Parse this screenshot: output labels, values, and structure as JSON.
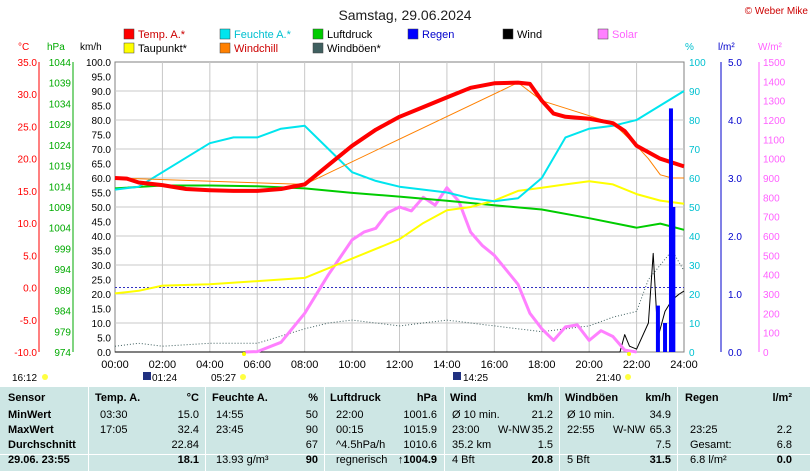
{
  "title": "Samstag, 29.06.2024",
  "copyright": "© Weber Mike",
  "legend": [
    {
      "label": "Temp. A.*",
      "color": "#ff0000"
    },
    {
      "label": "Feuchte A.*",
      "color": "#00e5ee"
    },
    {
      "label": "Luftdruck",
      "color": "#00cc00"
    },
    {
      "label": "Regen",
      "color": "#0000ff"
    },
    {
      "label": "Wind",
      "color": "#000000"
    },
    {
      "label": "Solar",
      "color": "#ff80ff"
    },
    {
      "label": "Taupunkt*",
      "color": "#ffff00"
    },
    {
      "label": "Windchill",
      "color": "#ff8000"
    },
    {
      "label": "Windböen*",
      "color": "#406060"
    }
  ],
  "axes": {
    "units": {
      "temp": "°C",
      "press": "hPa",
      "wind": "km/h",
      "hum": "%",
      "rain": "l/m²",
      "solar": "W/m²"
    },
    "temp_ticks": [
      "35.0",
      "30.0",
      "25.0",
      "20.0",
      "15.0",
      "10.0",
      "5.0",
      "0.0",
      "-5.0",
      "-10.0"
    ],
    "press_ticks": [
      "1044",
      "1039",
      "1034",
      "1029",
      "1024",
      "1019",
      "1014",
      "1009",
      "1004",
      "999",
      "994",
      "989",
      "984",
      "979",
      "974"
    ],
    "wind_ticks": [
      "100.0",
      "95.0",
      "90.0",
      "85.0",
      "80.0",
      "75.0",
      "70.0",
      "65.0",
      "60.0",
      "55.0",
      "50.0",
      "45.0",
      "40.0",
      "35.0",
      "30.0",
      "25.0",
      "20.0",
      "15.0",
      "10.0",
      "5.0",
      "0.0"
    ],
    "hum_ticks": [
      "100",
      "90",
      "80",
      "70",
      "60",
      "50",
      "40",
      "30",
      "20",
      "10",
      "0"
    ],
    "rain_ticks": [
      "5.0",
      "4.0",
      "3.0",
      "2.0",
      "1.0",
      "0.0"
    ],
    "solar_ticks": [
      "1500",
      "1400",
      "1300",
      "1200",
      "1100",
      "1000",
      "900",
      "800",
      "700",
      "600",
      "500",
      "400",
      "300",
      "200",
      "100",
      "0"
    ],
    "x_ticks": [
      "00:00",
      "02:00",
      "04:00",
      "06:00",
      "08:00",
      "10:00",
      "12:00",
      "14:00",
      "16:00",
      "18:00",
      "20:00",
      "22:00",
      "24:00"
    ],
    "sun": {
      "rise": "05:27",
      "set": "21:40",
      "rise_label": "16:12",
      "moon_rise": "01:24",
      "moon_set": "14:25"
    }
  },
  "chart_data": {
    "type": "line",
    "title": "Samstag, 29.06.2024",
    "x_unit": "hours",
    "xlim": [
      0,
      24
    ],
    "series": [
      {
        "name": "Temp. A.*",
        "unit": "°C",
        "ylim": [
          -10,
          35
        ],
        "points": [
          [
            0,
            17.0
          ],
          [
            0.5,
            16.9
          ],
          [
            1,
            16.3
          ],
          [
            2,
            15.9
          ],
          [
            3,
            15.3
          ],
          [
            4,
            15.1
          ],
          [
            5,
            15.0
          ],
          [
            6,
            15.0
          ],
          [
            7,
            15.3
          ],
          [
            8,
            16.0
          ],
          [
            9,
            19.0
          ],
          [
            10,
            22.0
          ],
          [
            11,
            24.5
          ],
          [
            12,
            26.5
          ],
          [
            13,
            28.0
          ],
          [
            14,
            29.5
          ],
          [
            15,
            31.0
          ],
          [
            16,
            31.7
          ],
          [
            17,
            31.8
          ],
          [
            17.5,
            31.6
          ],
          [
            18,
            29.0
          ],
          [
            18.5,
            27.0
          ],
          [
            19,
            26.5
          ],
          [
            20,
            26.2
          ],
          [
            21,
            25.5
          ],
          [
            21.5,
            24.3
          ],
          [
            22,
            22.0
          ],
          [
            23,
            20.0
          ],
          [
            24,
            18.8
          ]
        ]
      },
      {
        "name": "Feuchte A.*",
        "unit": "%",
        "ylim": [
          0,
          100
        ],
        "points": [
          [
            0,
            56
          ],
          [
            1,
            57
          ],
          [
            2,
            62
          ],
          [
            3,
            67
          ],
          [
            4,
            72
          ],
          [
            5,
            74
          ],
          [
            6,
            74
          ],
          [
            7,
            77
          ],
          [
            8,
            78
          ],
          [
            9,
            70
          ],
          [
            10,
            62
          ],
          [
            11,
            59
          ],
          [
            12,
            57
          ],
          [
            13,
            56
          ],
          [
            14,
            55
          ],
          [
            15,
            53
          ],
          [
            16,
            52
          ],
          [
            17,
            53
          ],
          [
            18,
            60
          ],
          [
            19,
            74
          ],
          [
            20,
            77
          ],
          [
            21,
            78
          ],
          [
            22,
            80
          ],
          [
            23,
            85
          ],
          [
            24,
            90
          ]
        ]
      },
      {
        "name": "Luftdruck",
        "unit": "hPa",
        "ylim": [
          974,
          1044
        ],
        "points": [
          [
            0,
            1013.5
          ],
          [
            2,
            1014.2
          ],
          [
            4,
            1014.2
          ],
          [
            6,
            1014.0
          ],
          [
            8,
            1013.5
          ],
          [
            10,
            1012.4
          ],
          [
            12,
            1011.5
          ],
          [
            14,
            1010.5
          ],
          [
            16,
            1009.4
          ],
          [
            18,
            1008.4
          ],
          [
            20,
            1006.3
          ],
          [
            22,
            1004.0
          ],
          [
            23,
            1005.0
          ],
          [
            24,
            1003.5
          ]
        ]
      },
      {
        "name": "Taupunkt*",
        "unit": "°C",
        "ylim": [
          -10,
          35
        ],
        "points": [
          [
            0,
            -0.9
          ],
          [
            1,
            -0.5
          ],
          [
            2,
            0.3
          ],
          [
            4,
            0.5
          ],
          [
            6,
            1.0
          ],
          [
            8,
            1.5
          ],
          [
            10,
            4.5
          ],
          [
            12,
            7.5
          ],
          [
            13,
            10.0
          ],
          [
            14,
            12.0
          ],
          [
            15,
            12.5
          ],
          [
            16,
            13.5
          ],
          [
            17,
            15.0
          ],
          [
            18,
            15.5
          ],
          [
            19,
            16.0
          ],
          [
            20,
            16.5
          ],
          [
            21,
            16.0
          ],
          [
            22,
            14.5
          ],
          [
            23,
            13.5
          ],
          [
            24,
            13.0
          ]
        ]
      },
      {
        "name": "Windchill",
        "unit": "°C",
        "ylim": [
          -10,
          35
        ],
        "points": [
          [
            0,
            17.0
          ],
          [
            8,
            16.0
          ],
          [
            17,
            31.8
          ],
          [
            18,
            29.0
          ],
          [
            21,
            25.5
          ],
          [
            22,
            22.0
          ],
          [
            22.5,
            20.0
          ],
          [
            23,
            17.5
          ],
          [
            23.5,
            17.0
          ],
          [
            24,
            17.0
          ]
        ]
      },
      {
        "name": "Wind",
        "unit": "km/h",
        "ylim": [
          0,
          100
        ],
        "points": [
          [
            0,
            0
          ],
          [
            20,
            0
          ],
          [
            21.3,
            0
          ],
          [
            21.5,
            6
          ],
          [
            21.7,
            2
          ],
          [
            22,
            1
          ],
          [
            22.5,
            10
          ],
          [
            22.7,
            34
          ],
          [
            22.9,
            5
          ],
          [
            23.2,
            14
          ],
          [
            23.5,
            18
          ],
          [
            23.8,
            20
          ],
          [
            24,
            21
          ]
        ]
      },
      {
        "name": "Windböen*",
        "unit": "km/h",
        "ylim": [
          0,
          100
        ],
        "points": [
          [
            0,
            2
          ],
          [
            1,
            3
          ],
          [
            2,
            2
          ],
          [
            4,
            3
          ],
          [
            6,
            3
          ],
          [
            8,
            8
          ],
          [
            9,
            10
          ],
          [
            10,
            11
          ],
          [
            12,
            9
          ],
          [
            14,
            11
          ],
          [
            16,
            9
          ],
          [
            18,
            7
          ],
          [
            19,
            8
          ],
          [
            20,
            9
          ],
          [
            21,
            12
          ],
          [
            22,
            14
          ],
          [
            22.5,
            25
          ],
          [
            23,
            30
          ],
          [
            23.5,
            35
          ],
          [
            24,
            28
          ]
        ]
      },
      {
        "name": "Solar",
        "unit": "W/m²",
        "ylim": [
          0,
          1500
        ],
        "points": [
          [
            5.5,
            0
          ],
          [
            6,
            2
          ],
          [
            7,
            50
          ],
          [
            8,
            200
          ],
          [
            9,
            400
          ],
          [
            10,
            580
          ],
          [
            10.5,
            620
          ],
          [
            11,
            640
          ],
          [
            11.5,
            720
          ],
          [
            12,
            750
          ],
          [
            12.5,
            730
          ],
          [
            13,
            800
          ],
          [
            13.5,
            760
          ],
          [
            14,
            850
          ],
          [
            14.5,
            780
          ],
          [
            15,
            620
          ],
          [
            15.5,
            550
          ],
          [
            16,
            500
          ],
          [
            17,
            350
          ],
          [
            17.5,
            200
          ],
          [
            18,
            120
          ],
          [
            18.5,
            60
          ],
          [
            19,
            130
          ],
          [
            19.5,
            140
          ],
          [
            20,
            60
          ],
          [
            20.5,
            110
          ],
          [
            21,
            80
          ],
          [
            21.5,
            10
          ],
          [
            22,
            0
          ]
        ]
      }
    ],
    "stats": {
      "headers": [
        "Sensor",
        "Temp. A.",
        "°C",
        "Feuchte A.",
        "%",
        "Luftdruck",
        "hPa",
        "Wind",
        "km/h",
        "Windböen",
        "km/h",
        "Regen",
        "l/m²"
      ],
      "rows": [
        {
          "label": "MinWert",
          "t_time": "03:30",
          "t_val": "15.0",
          "h_time": "14:55",
          "h_val": "50",
          "p_time": "22:00",
          "p_val": "1001.6",
          "w_a": "Ø 10 min.",
          "w_b": "",
          "w_val": "21.2",
          "g_a": "Ø 10 min.",
          "g_b": "",
          "g_val": "34.9",
          "r_a": "",
          "r_val": ""
        },
        {
          "label": "MaxWert",
          "t_time": "17:05",
          "t_val": "32.4",
          "h_time": "23:45",
          "h_val": "90",
          "p_time": "00:15",
          "p_val": "1015.9",
          "w_a": "23:00",
          "w_b": "W-NW",
          "w_val": "35.2",
          "g_a": "22:55",
          "g_b": "W-NW",
          "g_val": "65.3",
          "r_a": "23:25",
          "r_val": "2.2"
        },
        {
          "label": "Durchschnitt",
          "t_time": "",
          "t_val": "22.84",
          "h_time": "",
          "h_val": "67",
          "p_time": "^4.5hPa/h",
          "p_val": "1010.6",
          "w_a": "35.2 km",
          "w_b": "",
          "w_val": "1.5",
          "g_a": "",
          "g_b": "",
          "g_val": "7.5",
          "r_a": "Gesamt:",
          "r_val": "6.8"
        },
        {
          "label": "29.06. 23:55",
          "t_time": "",
          "t_val": "18.1",
          "h_time": "13.93 g/m³",
          "h_val": "90",
          "p_time": "regnerisch",
          "p_val": "↑1004.9",
          "w_a": "4 Bft",
          "w_b": "",
          "w_val": "20.8",
          "g_a": "5 Bft",
          "g_b": "",
          "g_val": "31.5",
          "r_a": "6.8 l/m²",
          "r_val": "0.0"
        }
      ]
    }
  }
}
